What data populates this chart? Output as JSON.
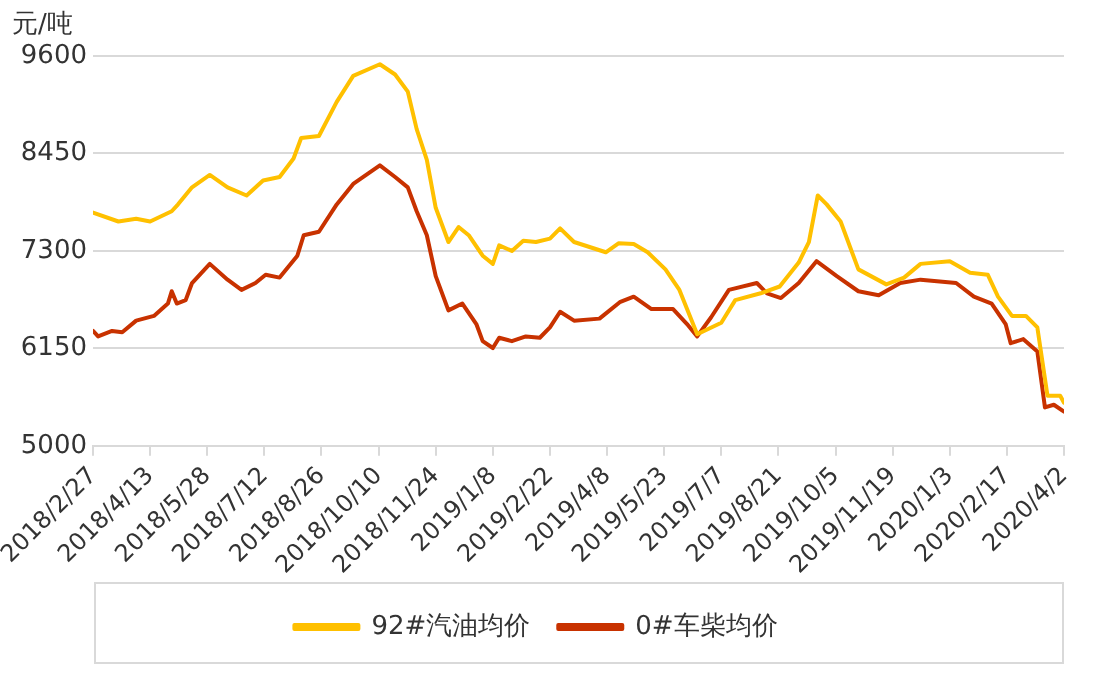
{
  "chart_data": {
    "type": "line",
    "ylabel": "元/吨",
    "xlim": [
      "2018-02-27",
      "2020-04-02"
    ],
    "xticks": [
      {
        "value": "2018-02-27",
        "label": "2018/2/27"
      },
      {
        "value": "2018-04-13",
        "label": "2018/4/13"
      },
      {
        "value": "2018-05-28",
        "label": "2018/5/28"
      },
      {
        "value": "2018-07-12",
        "label": "2018/7/12"
      },
      {
        "value": "2018-08-26",
        "label": "2018/8/26"
      },
      {
        "value": "2018-10-10",
        "label": "2018/10/10"
      },
      {
        "value": "2018-11-24",
        "label": "2018/11/24"
      },
      {
        "value": "2019-01-08",
        "label": "2019/1/8"
      },
      {
        "value": "2019-02-22",
        "label": "2019/2/22"
      },
      {
        "value": "2019-04-08",
        "label": "2019/4/8"
      },
      {
        "value": "2019-05-23",
        "label": "2019/5/23"
      },
      {
        "value": "2019-07-07",
        "label": "2019/7/7"
      },
      {
        "value": "2019-08-21",
        "label": "2019/8/21"
      },
      {
        "value": "2019-10-05",
        "label": "2019/10/5"
      },
      {
        "value": "2019-11-19",
        "label": "2019/11/19"
      },
      {
        "value": "2020-01-03",
        "label": "2020/1/3"
      },
      {
        "value": "2020-02-17",
        "label": "2020/2/17"
      },
      {
        "value": "2020-04-02",
        "label": "2020/4/2"
      }
    ],
    "ylim": [
      5000,
      9600
    ],
    "yticks": [
      5000,
      6150,
      7300,
      8450,
      9600
    ],
    "grid": "y",
    "legend": "bottom",
    "marker": "none",
    "line_style": "solid",
    "series": [
      {
        "name": "92#汽油均价",
        "color": "#ffc000",
        "x": [
          "2018-02-27",
          "2018-03-19",
          "2018-04-02",
          "2018-04-13",
          "2018-04-30",
          "2018-05-05",
          "2018-05-16",
          "2018-05-30",
          "2018-06-13",
          "2018-06-28",
          "2018-07-11",
          "2018-07-24",
          "2018-08-04",
          "2018-08-10",
          "2018-08-24",
          "2018-09-07",
          "2018-09-20",
          "2018-10-11",
          "2018-10-23",
          "2018-11-02",
          "2018-11-09",
          "2018-11-17",
          "2018-11-24",
          "2018-12-04",
          "2018-12-12",
          "2018-12-20",
          "2018-12-31",
          "2019-01-08",
          "2019-01-13",
          "2019-01-23",
          "2019-02-01",
          "2019-02-11",
          "2019-02-22",
          "2019-03-02",
          "2019-03-13",
          "2019-04-07",
          "2019-04-17",
          "2019-04-29",
          "2019-05-10",
          "2019-05-24",
          "2019-06-04",
          "2019-06-18",
          "2019-07-07",
          "2019-07-18",
          "2019-08-07",
          "2019-08-22",
          "2019-09-06",
          "2019-09-14",
          "2019-09-21",
          "2019-09-28",
          "2019-10-09",
          "2019-10-23",
          "2019-11-14",
          "2019-11-28",
          "2019-12-11",
          "2020-01-03",
          "2020-01-19",
          "2020-02-02",
          "2020-02-10",
          "2020-02-21",
          "2020-03-03",
          "2020-03-12",
          "2020-03-20",
          "2020-03-30",
          "2020-04-02"
        ],
        "values": [
          7752,
          7647,
          7680,
          7647,
          7768,
          7850,
          8050,
          8196,
          8050,
          7954,
          8131,
          8172,
          8390,
          8632,
          8656,
          9059,
          9366,
          9503,
          9382,
          9180,
          8737,
          8373,
          7809,
          7405,
          7582,
          7485,
          7243,
          7147,
          7365,
          7300,
          7421,
          7405,
          7445,
          7566,
          7405,
          7284,
          7389,
          7381,
          7284,
          7082,
          6840,
          6316,
          6453,
          6719,
          6800,
          6880,
          7163,
          7405,
          7954,
          7849,
          7647,
          7082,
          6905,
          6985,
          7147,
          7179,
          7042,
          7018,
          6760,
          6533,
          6533,
          6397,
          5590,
          5590,
          5509
        ]
      },
      {
        "name": "0#车柴均价",
        "color": "#c83200",
        "x": [
          "2018-02-27",
          "2018-03-03",
          "2018-03-14",
          "2018-03-22",
          "2018-04-02",
          "2018-04-16",
          "2018-04-27",
          "2018-04-30",
          "2018-05-04",
          "2018-05-11",
          "2018-05-16",
          "2018-05-30",
          "2018-06-13",
          "2018-06-24",
          "2018-07-05",
          "2018-07-13",
          "2018-07-24",
          "2018-08-07",
          "2018-08-12",
          "2018-08-24",
          "2018-09-07",
          "2018-09-20",
          "2018-10-11",
          "2018-10-23",
          "2018-11-02",
          "2018-11-09",
          "2018-11-17",
          "2018-11-24",
          "2018-12-04",
          "2018-12-15",
          "2018-12-26",
          "2018-12-31",
          "2019-01-08",
          "2019-01-13",
          "2019-01-23",
          "2019-02-03",
          "2019-02-14",
          "2019-02-22",
          "2019-03-02",
          "2019-03-13",
          "2019-04-02",
          "2019-04-18",
          "2019-04-29",
          "2019-05-13",
          "2019-05-30",
          "2019-06-10",
          "2019-06-18",
          "2019-06-29",
          "2019-07-13",
          "2019-08-04",
          "2019-08-12",
          "2019-08-23",
          "2019-09-06",
          "2019-09-20",
          "2019-10-06",
          "2019-10-23",
          "2019-11-08",
          "2019-11-25",
          "2019-12-11",
          "2020-01-08",
          "2020-01-22",
          "2020-02-05",
          "2020-02-16",
          "2020-02-20",
          "2020-03-01",
          "2020-03-12",
          "2020-03-18",
          "2020-03-25",
          "2020-04-02"
        ],
        "values": [
          6356,
          6291,
          6356,
          6340,
          6477,
          6533,
          6679,
          6824,
          6679,
          6719,
          6921,
          7147,
          6961,
          6840,
          6921,
          7018,
          6985,
          7244,
          7485,
          7526,
          7849,
          8091,
          8309,
          8172,
          8050,
          7768,
          7485,
          7002,
          6598,
          6679,
          6437,
          6235,
          6154,
          6275,
          6235,
          6291,
          6275,
          6397,
          6582,
          6477,
          6501,
          6695,
          6760,
          6614,
          6614,
          6437,
          6291,
          6517,
          6840,
          6921,
          6800,
          6744,
          6921,
          7179,
          7002,
          6824,
          6776,
          6921,
          6961,
          6921,
          6760,
          6679,
          6437,
          6211,
          6259,
          6114,
          5453,
          5485,
          5404
        ]
      }
    ]
  }
}
